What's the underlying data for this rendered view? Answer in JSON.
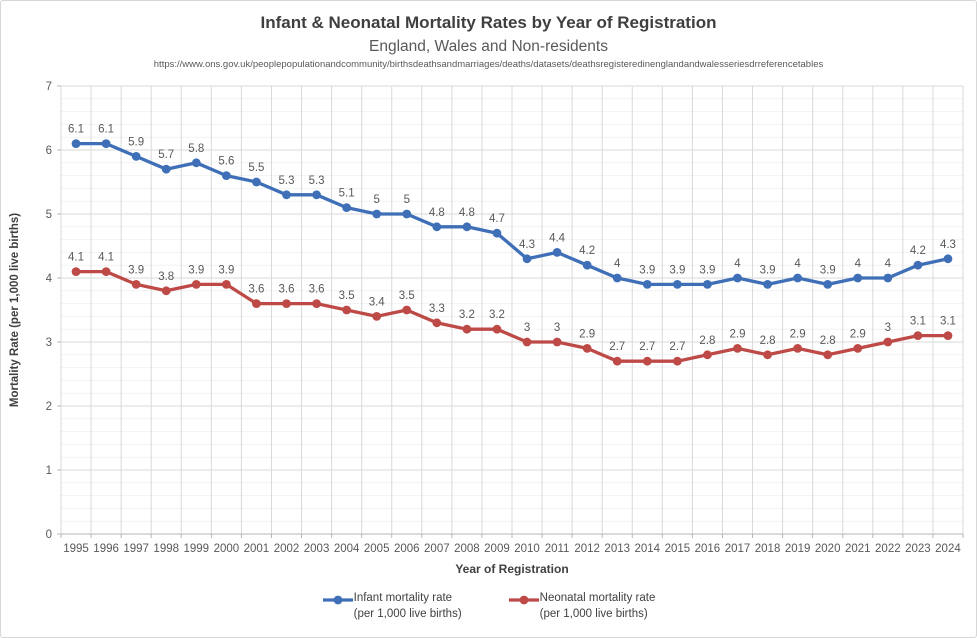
{
  "header": {
    "title": "Infant & Neonatal Mortality Rates by Year of Registration",
    "subtitle": "England, Wales and Non-residents",
    "source_url": "https://www.ons.gov.uk/peoplepopulationandcommunity/birthsdeathsandmarriages/deaths/datasets/deathsregisteredinenglandandwalesseriesdrreferencetables"
  },
  "chart_data": {
    "type": "line",
    "categories": [
      "1995",
      "1996",
      "1997",
      "1998",
      "1999",
      "2000",
      "2001",
      "2002",
      "2003",
      "2004",
      "2005",
      "2006",
      "2007",
      "2008",
      "2009",
      "2010",
      "2011",
      "2012",
      "2013",
      "2014",
      "2015",
      "2016",
      "2017",
      "2018",
      "2019",
      "2020",
      "2021",
      "2022",
      "2023",
      "2024"
    ],
    "series": [
      {
        "name": "Infant mortality rate",
        "unit": "(per 1,000 live births)",
        "color": "#3E6FB7",
        "values": [
          6.1,
          6.1,
          5.9,
          5.7,
          5.8,
          5.6,
          5.5,
          5.3,
          5.3,
          5.1,
          5,
          5,
          4.8,
          4.8,
          4.7,
          4.3,
          4.4,
          4.2,
          4,
          3.9,
          3.9,
          3.9,
          4,
          3.9,
          4,
          3.9,
          4,
          4,
          4.2,
          4.3
        ]
      },
      {
        "name": "Neonatal mortality rate",
        "unit": "(per 1,000 live births)",
        "color": "#BE4A47",
        "values": [
          4.1,
          4.1,
          3.9,
          3.8,
          3.9,
          3.9,
          3.6,
          3.6,
          3.6,
          3.5,
          3.4,
          3.5,
          3.3,
          3.2,
          3.2,
          3,
          3,
          2.9,
          2.7,
          2.7,
          2.7,
          2.8,
          2.9,
          2.8,
          2.9,
          2.8,
          2.9,
          3,
          3.1,
          3.1
        ]
      }
    ],
    "title": "Infant & Neonatal Mortality Rates by Year of Registration",
    "subtitle": "England, Wales and Non-residents",
    "xlabel": "Year of Registration",
    "ylabel": "Mortality Rate (per 1,000 live births)",
    "ylim": [
      0,
      7
    ],
    "y_ticks": [
      0,
      1,
      2,
      3,
      4,
      5,
      6,
      7
    ],
    "y_minor_step": 0.2,
    "grid": true,
    "data_labels": true,
    "legend_position": "bottom"
  },
  "style": {
    "grid_major_color": "#d9d9d9",
    "grid_minor_color": "#f2f2f2",
    "axis_color": "#b7b7b7",
    "tick_label_color": "#595959",
    "data_label_color": "#595959",
    "axis_title_color": "#404040"
  }
}
